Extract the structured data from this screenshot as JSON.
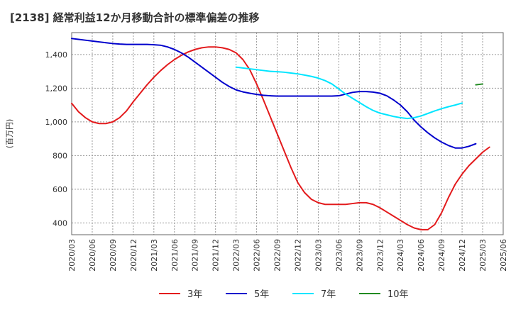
{
  "title": "[2138]  経常利益12か月移動合計の標準偏差の推移",
  "chart_data": {
    "type": "line",
    "title": "[2138]  経常利益12か月移動合計の標準偏差の推移",
    "ylabel": "(百万円)",
    "xlabel": "",
    "ylim": [
      330,
      1530
    ],
    "yticks": [
      400,
      600,
      800,
      1000,
      1200,
      1400
    ],
    "ytick_labels": [
      "400",
      "600",
      "800",
      "1,000",
      "1,200",
      "1,400"
    ],
    "xticks": [
      "2020/03",
      "2020/06",
      "2020/09",
      "2020/12",
      "2021/03",
      "2021/06",
      "2021/09",
      "2021/12",
      "2022/03",
      "2022/06",
      "2022/09",
      "2022/12",
      "2023/03",
      "2023/06",
      "2023/09",
      "2023/12",
      "2024/03",
      "2024/06",
      "2024/09",
      "2024/12",
      "2025/03",
      "2025/06"
    ],
    "grid": true,
    "legend_position": "bottom",
    "series": [
      {
        "name": "3年",
        "color": "#e31a1c",
        "start": "2020/03",
        "values": [
          1110,
          1060,
          1025,
          1000,
          990,
          990,
          1000,
          1025,
          1065,
          1120,
          1170,
          1220,
          1265,
          1305,
          1340,
          1370,
          1395,
          1415,
          1430,
          1440,
          1445,
          1445,
          1440,
          1430,
          1410,
          1370,
          1310,
          1225,
          1130,
          1030,
          930,
          830,
          730,
          640,
          580,
          540,
          520,
          510,
          510,
          510,
          510,
          515,
          520,
          520,
          510,
          490,
          465,
          440,
          415,
          390,
          370,
          360,
          360,
          390,
          460,
          550,
          630,
          690,
          740,
          780,
          820,
          850
        ]
      },
      {
        "name": "5年",
        "color": "#0000cc",
        "start": "2020/03",
        "values": [
          1495,
          1490,
          1485,
          1480,
          1475,
          1470,
          1465,
          1462,
          1460,
          1460,
          1460,
          1460,
          1458,
          1455,
          1445,
          1430,
          1410,
          1385,
          1355,
          1325,
          1295,
          1265,
          1235,
          1210,
          1190,
          1178,
          1170,
          1163,
          1158,
          1155,
          1153,
          1153,
          1153,
          1153,
          1153,
          1153,
          1153,
          1153,
          1153,
          1155,
          1165,
          1175,
          1180,
          1180,
          1177,
          1170,
          1155,
          1130,
          1100,
          1060,
          1010,
          970,
          935,
          905,
          880,
          860,
          845,
          845,
          855,
          870
        ]
      },
      {
        "name": "7年",
        "color": "#00e5ff",
        "start": "2022/03",
        "values": [
          1325,
          1320,
          1315,
          1310,
          1305,
          1300,
          1298,
          1295,
          1290,
          1285,
          1278,
          1270,
          1260,
          1245,
          1225,
          1195,
          1165,
          1140,
          1115,
          1090,
          1068,
          1052,
          1042,
          1032,
          1025,
          1020,
          1025,
          1035,
          1050,
          1065,
          1078,
          1090,
          1100,
          1112
        ]
      },
      {
        "name": "10年",
        "color": "#228b22",
        "start": "2025/02",
        "values": [
          1220,
          1225
        ]
      }
    ]
  }
}
